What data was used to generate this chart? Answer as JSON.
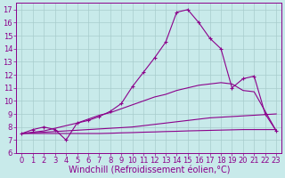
{
  "background_color": "#c8eaea",
  "line_color": "#8b008b",
  "grid_color": "#a8cccc",
  "xlabel": "Windchill (Refroidissement éolien,°C)",
  "xlabel_fontsize": 7,
  "tick_fontsize": 6,
  "xlim": [
    -0.5,
    23.5
  ],
  "ylim": [
    6,
    17.5
  ],
  "xticks": [
    0,
    1,
    2,
    3,
    4,
    5,
    6,
    7,
    8,
    9,
    10,
    11,
    12,
    13,
    14,
    15,
    16,
    17,
    18,
    19,
    20,
    21,
    22,
    23
  ],
  "yticks": [
    6,
    7,
    8,
    9,
    10,
    11,
    12,
    13,
    14,
    15,
    16,
    17
  ],
  "s1_x": [
    0,
    1,
    2,
    3,
    4,
    5,
    6,
    7,
    8,
    9,
    10,
    11,
    12,
    13,
    14,
    15,
    16,
    17,
    18,
    19,
    20,
    21,
    22,
    23
  ],
  "s1_y": [
    7.5,
    7.8,
    8.0,
    7.8,
    7.0,
    8.3,
    8.5,
    8.8,
    9.2,
    9.8,
    11.1,
    12.2,
    13.3,
    14.5,
    16.8,
    17.0,
    16.0,
    14.8,
    14.0,
    11.0,
    11.7,
    11.9,
    9.0,
    7.7
  ],
  "s2_x": [
    0,
    1,
    2,
    3,
    4,
    5,
    6,
    7,
    8,
    9,
    10,
    11,
    12,
    13,
    14,
    15,
    16,
    17,
    18,
    19,
    20,
    21,
    22,
    23
  ],
  "s2_y": [
    7.5,
    7.6,
    7.7,
    7.9,
    8.1,
    8.3,
    8.6,
    8.9,
    9.1,
    9.4,
    9.7,
    10.0,
    10.3,
    10.5,
    10.8,
    11.0,
    11.2,
    11.3,
    11.4,
    11.3,
    10.8,
    10.7,
    9.2,
    7.7
  ],
  "s3_x": [
    0,
    1,
    2,
    3,
    4,
    5,
    6,
    7,
    8,
    9,
    10,
    11,
    12,
    13,
    14,
    15,
    16,
    17,
    18,
    19,
    20,
    21,
    22,
    23
  ],
  "s3_y": [
    7.5,
    7.55,
    7.6,
    7.65,
    7.7,
    7.75,
    7.8,
    7.85,
    7.9,
    7.95,
    8.0,
    8.1,
    8.2,
    8.3,
    8.4,
    8.5,
    8.6,
    8.7,
    8.75,
    8.8,
    8.85,
    8.9,
    8.95,
    9.0
  ],
  "s4_x": [
    0,
    1,
    2,
    3,
    4,
    5,
    6,
    7,
    8,
    9,
    10,
    11,
    12,
    13,
    14,
    15,
    16,
    17,
    18,
    19,
    20,
    21,
    22,
    23
  ],
  "s4_y": [
    7.5,
    7.5,
    7.5,
    7.5,
    7.5,
    7.5,
    7.5,
    7.5,
    7.52,
    7.55,
    7.57,
    7.6,
    7.62,
    7.65,
    7.67,
    7.7,
    7.72,
    7.74,
    7.76,
    7.78,
    7.8,
    7.8,
    7.8,
    7.8
  ]
}
